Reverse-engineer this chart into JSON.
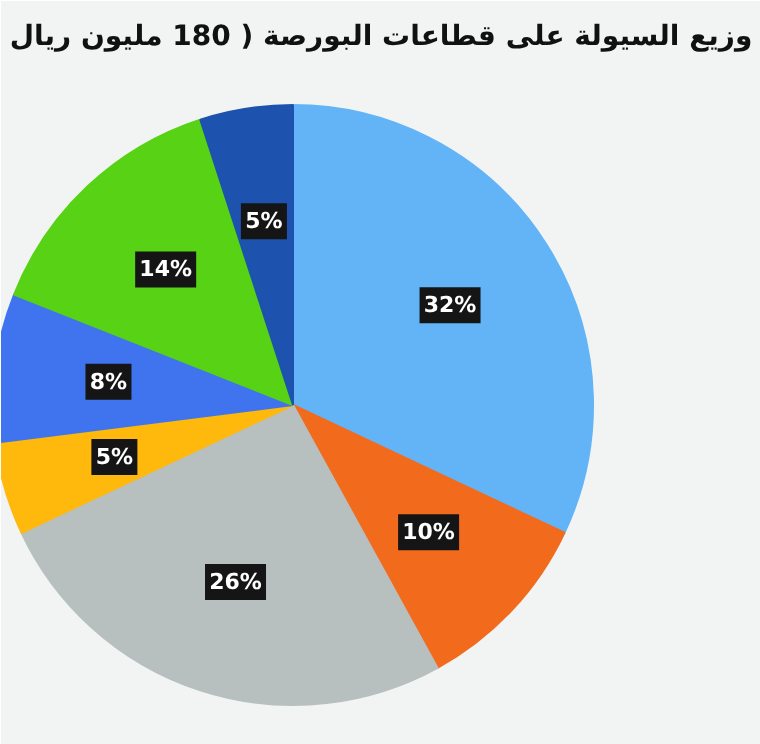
{
  "chart_data": {
    "type": "pie",
    "title": "وزيع السيولة على قطاعات البورصة ( 180 مليون ريال",
    "categories": [
      null,
      null,
      null,
      null,
      null,
      null,
      null
    ],
    "values": [
      32,
      10,
      26,
      5,
      8,
      14,
      5
    ],
    "colors": [
      "#62b4f7",
      "#f26b1d",
      "#b7bfbf",
      "#ffb80c",
      "#3f74ee",
      "#58d214",
      "#1d52ae"
    ],
    "value_labels": [
      "32%",
      "10%",
      "26%",
      "5%",
      "8%",
      "14%",
      "5%"
    ]
  }
}
